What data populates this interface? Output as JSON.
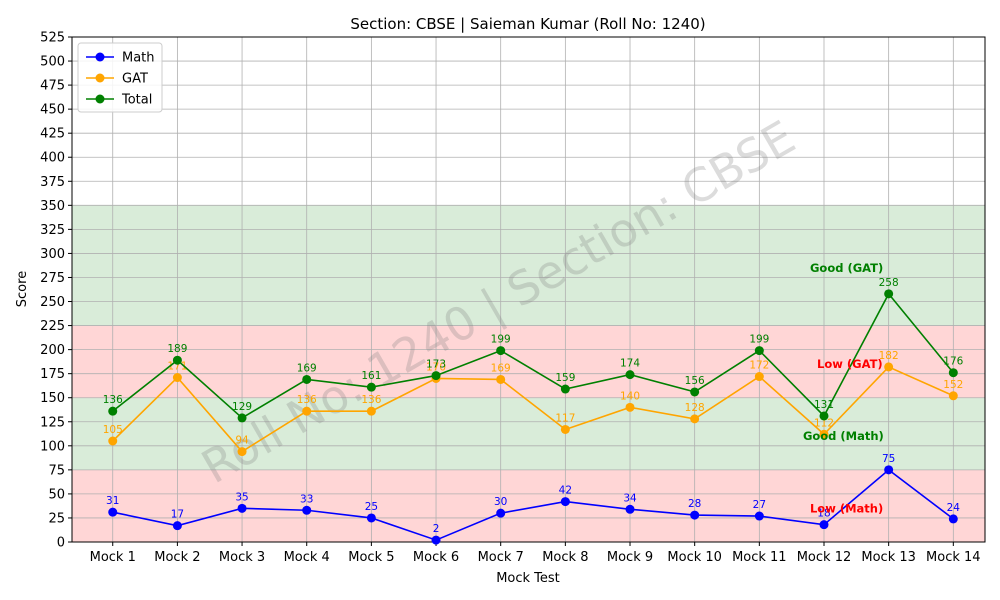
{
  "chart_data": {
    "type": "line",
    "title": "Section: CBSE | Saieman Kumar (Roll No: 1240)",
    "xlabel": "Mock Test",
    "ylabel": "Score",
    "ylim": [
      0,
      525
    ],
    "ytick_step": 25,
    "grid": true,
    "legend_position": "top-left",
    "categories": [
      "Mock 1",
      "Mock 2",
      "Mock 3",
      "Mock 4",
      "Mock 5",
      "Mock 6",
      "Mock 7",
      "Mock 8",
      "Mock 9",
      "Mock 10",
      "Mock 11",
      "Mock 12",
      "Mock 13",
      "Mock 14"
    ],
    "series": [
      {
        "name": "Math",
        "color": "#0000ff",
        "values": [
          31,
          17,
          35,
          33,
          25,
          2,
          30,
          42,
          34,
          28,
          27,
          18,
          75,
          24
        ]
      },
      {
        "name": "GAT",
        "color": "#ffa500",
        "values": [
          105,
          171,
          94,
          136,
          136,
          170,
          169,
          117,
          140,
          128,
          172,
          112,
          182,
          152
        ]
      },
      {
        "name": "Total",
        "color": "#008000",
        "values": [
          136,
          189,
          129,
          169,
          161,
          173,
          199,
          159,
          174,
          156,
          199,
          131,
          258,
          176
        ]
      }
    ],
    "bands": [
      {
        "from": 0,
        "to": 75,
        "color": "#ffd6d6"
      },
      {
        "from": 75,
        "to": 150,
        "color": "#d9ecd9"
      },
      {
        "from": 150,
        "to": 225,
        "color": "#ffd6d6"
      },
      {
        "from": 225,
        "to": 350,
        "color": "#d9ecd9"
      }
    ],
    "annotations": [
      {
        "text": "Good (GAT)",
        "x": 11.35,
        "y": 285,
        "color": "#008000"
      },
      {
        "text": "Low (GAT)",
        "x": 11.4,
        "y": 185,
        "color": "#ff0000"
      },
      {
        "text": "Good (Math)",
        "x": 11.3,
        "y": 110,
        "color": "#008000"
      },
      {
        "text": "Low (Math)",
        "x": 11.35,
        "y": 35,
        "color": "#ff0000"
      }
    ],
    "watermark": "Roll No: 1240 | Section: CBSE"
  }
}
